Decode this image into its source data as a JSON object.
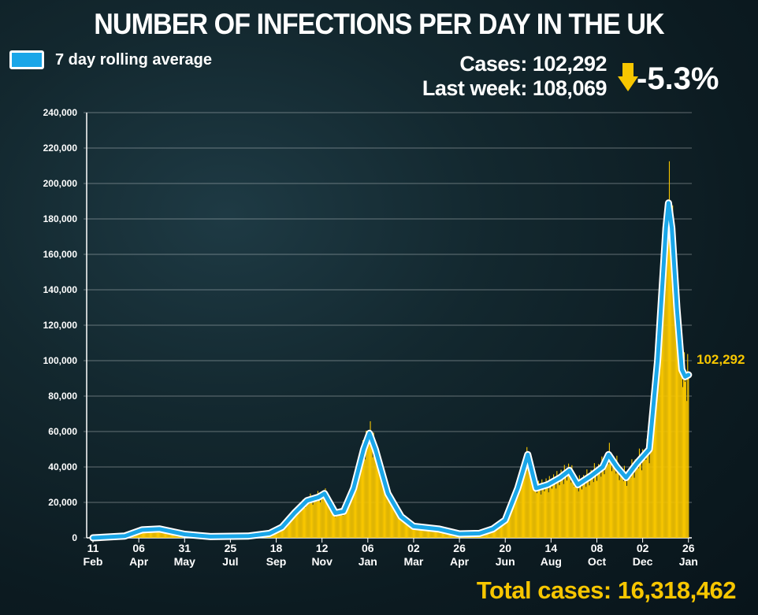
{
  "title": "NUMBER OF INFECTIONS PER DAY IN THE UK",
  "legend": {
    "label": "7 day rolling average",
    "color": "#1aa6e8"
  },
  "stats": {
    "cases": "Cases: 102,292",
    "last_week": "Last week: 108,069",
    "change": "-5.3%",
    "arrow_icon": "down-arrow",
    "arrow_color": "#f7c600"
  },
  "total": "Total cases: 16,318,462",
  "chart_data": {
    "type": "area",
    "title": "NUMBER OF INFECTIONS PER DAY IN THE UK",
    "xlabel": "",
    "ylabel": "",
    "ylim": [
      0,
      240000
    ],
    "grid": true,
    "legend_placement": "top-left",
    "yticks": [
      "0",
      "20,000",
      "40,000",
      "60,000",
      "80,000",
      "100,000",
      "120,000",
      "140,000",
      "160,000",
      "180,000",
      "200,000",
      "220,000",
      "240,000"
    ],
    "xticks": [
      {
        "date": "2020-02-11",
        "day": "11",
        "month": "Feb"
      },
      {
        "date": "2020-04-06",
        "day": "06",
        "month": "Apr"
      },
      {
        "date": "2020-05-31",
        "day": "31",
        "month": "May"
      },
      {
        "date": "2020-07-25",
        "day": "25",
        "month": "Jul"
      },
      {
        "date": "2020-09-18",
        "day": "18",
        "month": "Sep"
      },
      {
        "date": "2020-11-12",
        "day": "12",
        "month": "Nov"
      },
      {
        "date": "2021-01-06",
        "day": "06",
        "month": "Jan"
      },
      {
        "date": "2021-03-02",
        "day": "02",
        "month": "Mar"
      },
      {
        "date": "2021-04-26",
        "day": "26",
        "month": "Apr"
      },
      {
        "date": "2021-06-20",
        "day": "20",
        "month": "Jun"
      },
      {
        "date": "2021-08-14",
        "day": "14",
        "month": "Aug"
      },
      {
        "date": "2021-10-08",
        "day": "08",
        "month": "Oct"
      },
      {
        "date": "2021-12-02",
        "day": "02",
        "month": "Dec"
      },
      {
        "date": "2022-01-26",
        "day": "26",
        "month": "Jan"
      }
    ],
    "series": [
      {
        "name": "7 day rolling average",
        "color": "#1aa6e8",
        "points": [
          [
            "2020-02-11",
            0
          ],
          [
            "2020-03-20",
            1000
          ],
          [
            "2020-04-10",
            4500
          ],
          [
            "2020-05-01",
            5000
          ],
          [
            "2020-05-31",
            2000
          ],
          [
            "2020-07-01",
            700
          ],
          [
            "2020-08-15",
            1000
          ],
          [
            "2020-09-10",
            2500
          ],
          [
            "2020-09-25",
            6000
          ],
          [
            "2020-10-10",
            14000
          ],
          [
            "2020-10-25",
            21000
          ],
          [
            "2020-11-08",
            23000
          ],
          [
            "2020-11-15",
            25000
          ],
          [
            "2020-11-28",
            14000
          ],
          [
            "2020-12-08",
            15000
          ],
          [
            "2020-12-20",
            28000
          ],
          [
            "2021-01-01",
            50000
          ],
          [
            "2021-01-08",
            59000
          ],
          [
            "2021-01-15",
            50000
          ],
          [
            "2021-01-30",
            25000
          ],
          [
            "2021-02-15",
            12000
          ],
          [
            "2021-03-02",
            6500
          ],
          [
            "2021-04-01",
            5000
          ],
          [
            "2021-04-26",
            2200
          ],
          [
            "2021-05-20",
            2500
          ],
          [
            "2021-06-05",
            5000
          ],
          [
            "2021-06-20",
            10000
          ],
          [
            "2021-07-05",
            28000
          ],
          [
            "2021-07-17",
            47000
          ],
          [
            "2021-07-27",
            28000
          ],
          [
            "2021-08-10",
            30000
          ],
          [
            "2021-08-25",
            34000
          ],
          [
            "2021-09-05",
            38000
          ],
          [
            "2021-09-15",
            30000
          ],
          [
            "2021-10-01",
            35000
          ],
          [
            "2021-10-15",
            40000
          ],
          [
            "2021-10-22",
            47000
          ],
          [
            "2021-11-01",
            40000
          ],
          [
            "2021-11-12",
            34000
          ],
          [
            "2021-11-25",
            42000
          ],
          [
            "2021-12-10",
            50000
          ],
          [
            "2021-12-20",
            100000
          ],
          [
            "2021-12-30",
            175000
          ],
          [
            "2022-01-02",
            189000
          ],
          [
            "2022-01-06",
            175000
          ],
          [
            "2022-01-12",
            130000
          ],
          [
            "2022-01-18",
            95000
          ],
          [
            "2022-01-22",
            91000
          ],
          [
            "2022-01-26",
            92000
          ]
        ]
      },
      {
        "name": "Daily cases",
        "color": "#f7c600"
      }
    ],
    "annotation": "102,292",
    "last_value": 102292
  }
}
